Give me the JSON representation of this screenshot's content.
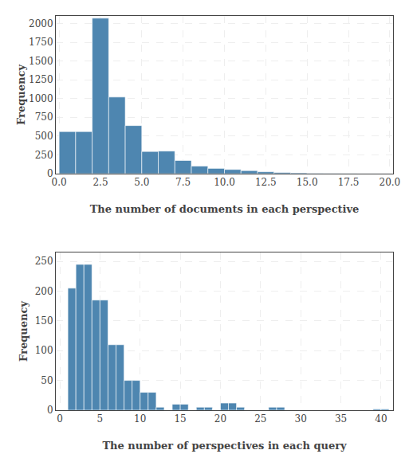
{
  "chart_data": [
    {
      "type": "histogram",
      "xlabel": "The number of documents in each perspective",
      "ylabel": "Frequency",
      "color": "#4e86b0",
      "xlim": [
        -0.2,
        20.2
      ],
      "ylim": [
        0,
        2100
      ],
      "xticks": [
        {
          "value": 0.0,
          "label": "0.0"
        },
        2.5,
        {
          "value": 5.0,
          "label": "5.0"
        },
        7.5,
        {
          "value": 10.0,
          "label": "10.0"
        },
        12.5,
        {
          "value": 15.0,
          "label": "15.0"
        },
        17.5,
        {
          "value": 20.0,
          "label": "20.0"
        }
      ],
      "yticks": [
        0,
        250,
        500,
        750,
        1000,
        1250,
        1500,
        1750,
        2000
      ],
      "bins": [
        0,
        1,
        2,
        3,
        4,
        5,
        6,
        7,
        8,
        9,
        10,
        11,
        12,
        13,
        14,
        15,
        16,
        17,
        18,
        19,
        20
      ],
      "values": [
        560,
        560,
        2070,
        1020,
        640,
        295,
        300,
        175,
        100,
        70,
        55,
        40,
        25,
        15,
        10,
        5,
        3,
        2,
        1,
        1
      ],
      "grid": true
    },
    {
      "type": "histogram",
      "xlabel": "The number of perspectives in each query",
      "ylabel": "Frequency",
      "color": "#4e86b0",
      "xlim": [
        -0.5,
        41.5
      ],
      "ylim": [
        0,
        265
      ],
      "xticks": [
        0,
        5,
        10,
        15,
        20,
        25,
        30,
        35,
        40
      ],
      "yticks": [
        0,
        50,
        100,
        150,
        200,
        250
      ],
      "bins": [
        1,
        2,
        3,
        4,
        5,
        6,
        7,
        8,
        9,
        10,
        11,
        12,
        13,
        14,
        15,
        16,
        17,
        18,
        19,
        20,
        21,
        22,
        23,
        24,
        25,
        26,
        27,
        28,
        29,
        30,
        31,
        32,
        33,
        34,
        35,
        36,
        37,
        38,
        39,
        40,
        41
      ],
      "values": [
        205,
        245,
        245,
        185,
        185,
        110,
        110,
        50,
        50,
        30,
        30,
        5,
        0,
        10,
        10,
        0,
        5,
        5,
        0,
        12,
        12,
        5,
        0,
        0,
        0,
        5,
        5,
        0,
        0,
        0,
        0,
        0,
        0,
        0,
        0,
        0,
        0,
        0,
        2,
        2
      ],
      "grid": true
    }
  ]
}
